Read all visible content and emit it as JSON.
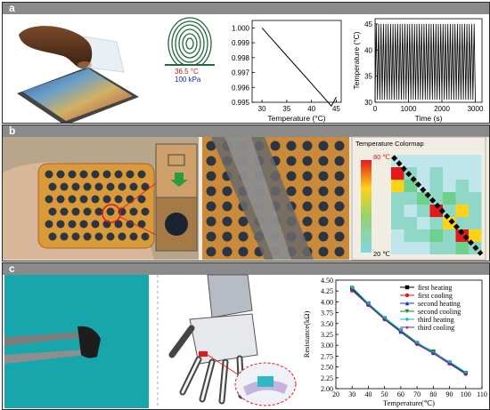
{
  "panels": {
    "a": {
      "label": "a"
    },
    "b": {
      "label": "b"
    },
    "c": {
      "label": "c"
    }
  },
  "fingerprint": {
    "temp": "36.5 °C",
    "pressure": "100 kPa"
  },
  "chart_data": [
    {
      "type": "line",
      "xlabel": "Temperature (°C)",
      "ylabel": "",
      "xlim": [
        28,
        46
      ],
      "ylim": [
        0.995,
        1.0005
      ],
      "xticks": [
        "30",
        "35",
        "40",
        "45"
      ],
      "yticks": [
        "0.995",
        "0.996",
        "0.997",
        "0.998",
        "0.999",
        "1.000"
      ],
      "series": [
        {
          "x": [
            30,
            32,
            34,
            36,
            38,
            40,
            42,
            44,
            45
          ],
          "y": [
            1.0,
            0.99925,
            0.9985,
            0.99775,
            0.997,
            0.99625,
            0.9955,
            0.99475,
            0.99535
          ]
        }
      ]
    },
    {
      "type": "line",
      "xlabel": "Time (s)",
      "ylabel": "Temperature (°C)",
      "xlim": [
        0,
        3200
      ],
      "ylim": [
        30,
        46
      ],
      "xticks": [
        "0",
        "1000",
        "2000",
        "3000"
      ],
      "yticks": [
        "30",
        "35",
        "40",
        "45"
      ],
      "cycles": 42,
      "low": 30.5,
      "high": 45
    },
    {
      "type": "heatmap",
      "title": "Temperature Colormap",
      "scale_max": "80 ℃",
      "scale_min": "20 ℃",
      "grid": [
        [
          0,
          0,
          0,
          0,
          0,
          0,
          0
        ],
        [
          4,
          1,
          0,
          1,
          0,
          0,
          0
        ],
        [
          3,
          2,
          0,
          1,
          0,
          1,
          0
        ],
        [
          1,
          1,
          2,
          1,
          2,
          1,
          1
        ],
        [
          1,
          0,
          1,
          4,
          1,
          3,
          1
        ],
        [
          1,
          1,
          0,
          1,
          3,
          1,
          1
        ],
        [
          0,
          1,
          1,
          2,
          1,
          4,
          3
        ],
        [
          0,
          0,
          0,
          1,
          1,
          2,
          1
        ]
      ]
    },
    {
      "type": "line",
      "xlabel": "Temperature(℃)",
      "ylabel": "Resistance(kΩ)",
      "xlim": [
        20,
        110
      ],
      "ylim": [
        2.0,
        4.5
      ],
      "xticks": [
        "20",
        "30",
        "40",
        "50",
        "60",
        "70",
        "80",
        "90",
        "100",
        "110"
      ],
      "yticks": [
        "2.00",
        "2.25",
        "2.50",
        "2.75",
        "3.00",
        "3.25",
        "3.50",
        "3.75",
        "4.00",
        "4.25",
        "4.50"
      ],
      "series": [
        {
          "name": "first heating",
          "color": "#000000",
          "marker": "square",
          "x": [
            30,
            40,
            50,
            60,
            70,
            80,
            90,
            100
          ],
          "y": [
            4.32,
            3.96,
            3.62,
            3.34,
            3.05,
            2.85,
            2.6,
            2.36
          ]
        },
        {
          "name": "first cooling",
          "color": "#e8141e",
          "marker": "circle",
          "x": [
            30,
            40,
            50,
            60,
            70,
            80,
            90,
            100
          ],
          "y": [
            4.26,
            3.93,
            3.6,
            3.32,
            3.03,
            2.84,
            2.58,
            2.35
          ]
        },
        {
          "name": "second heating",
          "color": "#1a2bd4",
          "marker": "triangle",
          "x": [
            30,
            40,
            50,
            60,
            70,
            80,
            90,
            100
          ],
          "y": [
            4.3,
            3.94,
            3.63,
            3.31,
            3.06,
            2.82,
            2.61,
            2.37
          ]
        },
        {
          "name": "second cooling",
          "color": "#0a8a2a",
          "marker": "tri-down",
          "x": [
            30,
            40,
            50,
            60,
            70,
            80,
            90,
            100
          ],
          "y": [
            4.28,
            3.95,
            3.61,
            3.33,
            3.04,
            2.86,
            2.59,
            2.34
          ]
        },
        {
          "name": "third heating",
          "color": "#11b6c9",
          "marker": "diamond",
          "x": [
            30,
            40,
            50,
            60,
            70,
            80,
            90,
            100
          ],
          "y": [
            4.34,
            3.97,
            3.64,
            3.35,
            3.07,
            2.83,
            2.62,
            2.38
          ]
        },
        {
          "name": "third cooling",
          "color": "#7a1fa0",
          "marker": "star",
          "x": [
            30,
            40,
            50,
            60,
            70,
            80,
            90,
            100
          ],
          "y": [
            4.27,
            3.92,
            3.59,
            3.3,
            3.02,
            2.81,
            2.57,
            2.33
          ]
        }
      ]
    }
  ]
}
